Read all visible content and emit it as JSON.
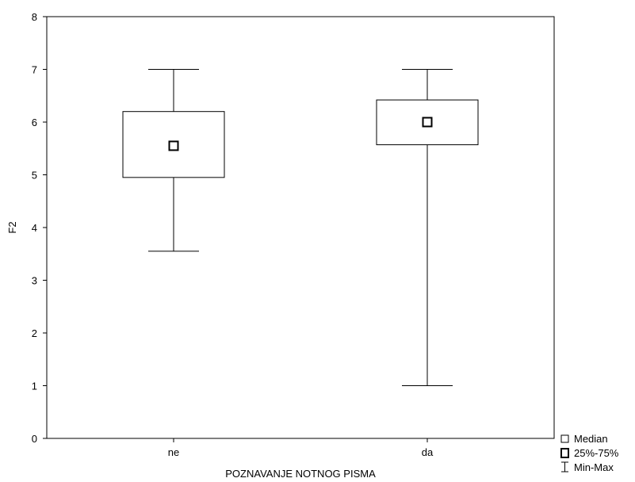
{
  "chart_data": {
    "type": "boxplot",
    "title": "",
    "xlabel": "POZNAVANJE NOTNOG PISMA",
    "ylabel": "F2",
    "ylim": [
      0,
      8
    ],
    "yticks": [
      "0",
      "1",
      "2",
      "3",
      "4",
      "5",
      "6",
      "7",
      "8"
    ],
    "grid": false,
    "legend_position": "bottom-right",
    "legend": [
      {
        "symbol": "square",
        "label": "Median"
      },
      {
        "symbol": "box",
        "label": "25%-75%"
      },
      {
        "symbol": "whisker",
        "label": "Min-Max"
      }
    ],
    "categories": [
      "ne",
      "da"
    ],
    "boxes": [
      {
        "category": "ne",
        "min": 3.55,
        "q1": 4.95,
        "median": 5.55,
        "q3": 6.2,
        "max": 7.0
      },
      {
        "category": "da",
        "min": 1.0,
        "q1": 5.57,
        "median": 6.0,
        "q3": 6.42,
        "max": 7.0
      }
    ]
  }
}
